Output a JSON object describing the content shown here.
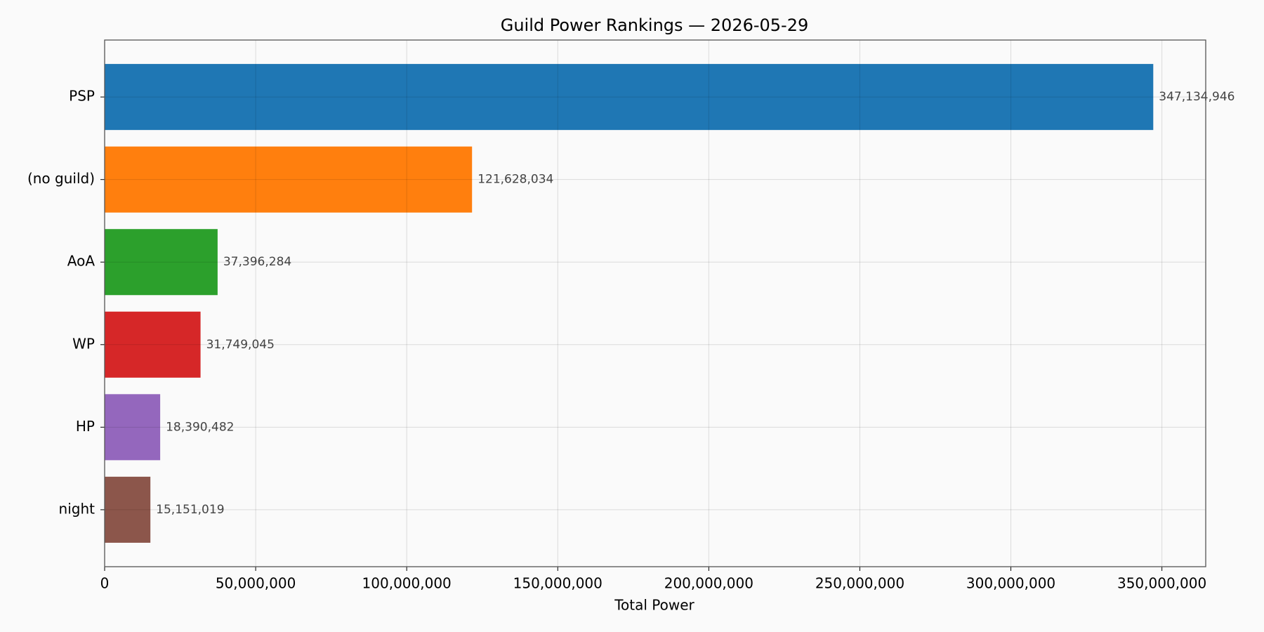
{
  "chart_data": {
    "type": "barh",
    "title": "Guild Power Rankings — 2026-05-29",
    "x_label": "Total Power",
    "categories": [
      "PSP",
      "(no guild)",
      "AoA",
      "WP",
      "HP",
      "night"
    ],
    "values": [
      347134946,
      121628034,
      37396284,
      31749045,
      18390482,
      15151019
    ],
    "value_labels": [
      "347,134,946",
      "121,628,034",
      "37,396,284",
      "31,749,045",
      "18,390,482",
      "15,151,019"
    ],
    "colors": [
      "#1f77b4",
      "#ff7f0e",
      "#2ca02c",
      "#d62728",
      "#9467bd",
      "#8c564b"
    ],
    "xlim": [
      0,
      364500000
    ],
    "xticks": [
      0,
      {
        "value": 50000000,
        "label": "50,000,000"
      },
      {
        "value": 100000000,
        "label": "100,000,000"
      },
      {
        "value": 150000000,
        "label": "150,000,000"
      },
      {
        "value": 200000000,
        "label": "200,000,000"
      },
      {
        "value": 250000000,
        "label": "250,000,000"
      },
      {
        "value": 300000000,
        "label": "300,000,000"
      },
      {
        "value": 350000000,
        "label": "350,000,000"
      }
    ],
    "grid": true
  }
}
